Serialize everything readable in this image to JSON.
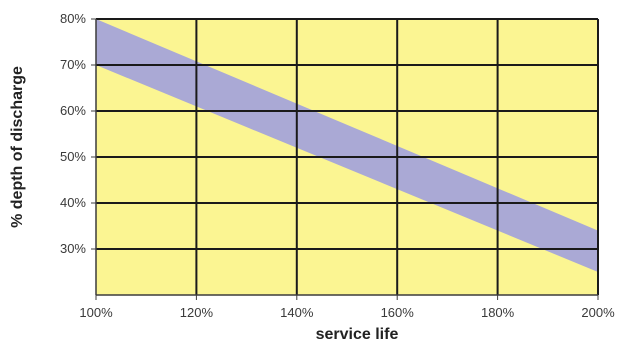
{
  "chart_data": {
    "type": "area",
    "title": "",
    "xlabel": "service life",
    "ylabel": "% depth of discharge",
    "xlim": [
      100,
      200
    ],
    "ylim": [
      20,
      80
    ],
    "x_ticks": [
      "100%",
      "120%",
      "140%",
      "160%",
      "180%",
      "200%"
    ],
    "y_ticks": [
      "30%",
      "40%",
      "50%",
      "60%",
      "70%",
      "80%"
    ],
    "x_tick_values": [
      100,
      120,
      140,
      160,
      180,
      200
    ],
    "y_tick_values": [
      30,
      40,
      50,
      60,
      70,
      80
    ],
    "grid": true,
    "legend": "none",
    "series": [
      {
        "x": [
          100,
          200
        ],
        "upper": [
          80,
          34
        ],
        "lower": [
          70,
          25
        ]
      }
    ],
    "colors": {
      "plot_background": "#fbf592",
      "band": "#aaa9d5",
      "grid": "#1a1a1a",
      "axis": "#3c3c3c"
    }
  }
}
